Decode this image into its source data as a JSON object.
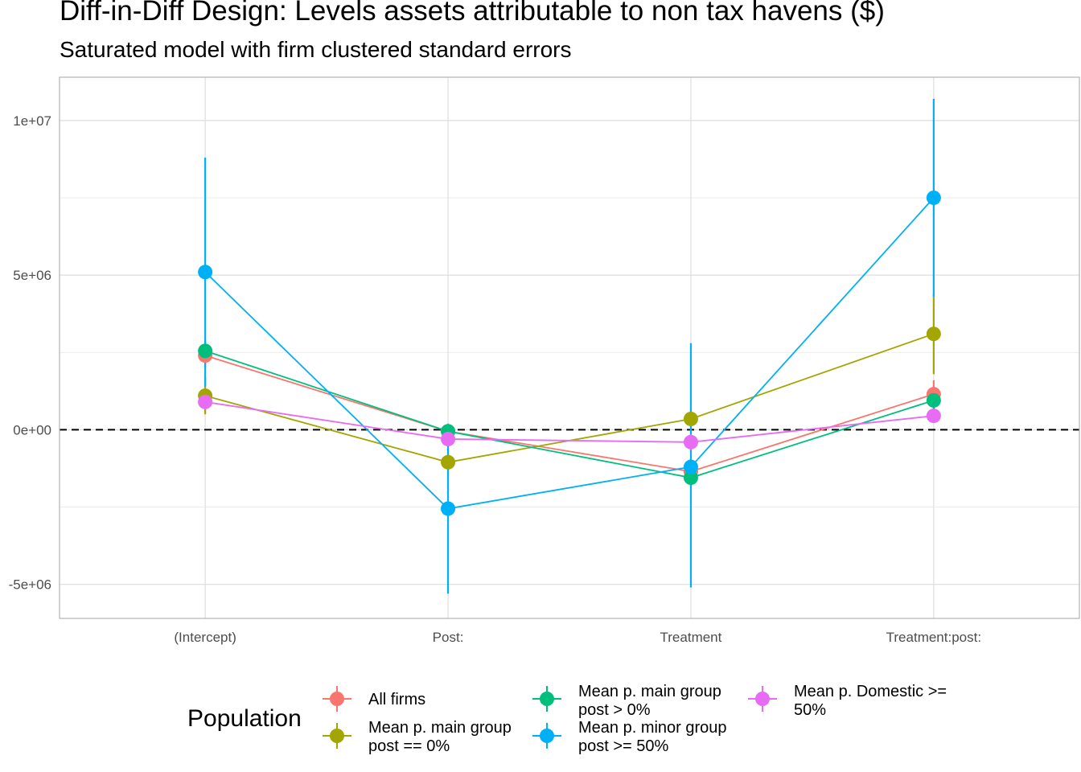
{
  "chart_data": {
    "type": "line",
    "title": "Diff-in-Diff Design: Levels assets attributable to non tax havens  ($)",
    "subtitle": "Saturated model with firm clustered standard errors",
    "xlabel": "",
    "ylabel": "",
    "categories": [
      "(Intercept)",
      "Post:",
      "Treatment",
      "Treatment:post:"
    ],
    "ylim": [
      -6100000,
      11400000
    ],
    "yticks": [
      -5000000,
      0,
      5000000,
      10000000
    ],
    "ytick_labels": [
      "-5e+06",
      "0e+00",
      "5e+06",
      "1e+07"
    ],
    "reference_line": {
      "y": 0,
      "style": "dashed"
    },
    "grid": true,
    "legend": {
      "title": "Population",
      "position": "bottom"
    },
    "series": [
      {
        "name": "All firms",
        "color": "#F8766D",
        "values": [
          2400000,
          -50000,
          -1350000,
          1150000
        ],
        "lower": [
          2000000,
          -250000,
          -1700000,
          700000
        ],
        "upper": [
          2800000,
          150000,
          -1000000,
          1600000
        ]
      },
      {
        "name": "Mean p. main group post == 0%",
        "legend_lines": [
          "Mean p. main group",
          "post == 0%"
        ],
        "color": "#A3A500",
        "values": [
          1100000,
          -1050000,
          350000,
          3100000
        ],
        "lower": [
          500000,
          -1500000,
          0,
          1800000
        ],
        "upper": [
          1700000,
          -600000,
          700000,
          4400000
        ]
      },
      {
        "name": "Mean p. main group post > 0%",
        "legend_lines": [
          "Mean p. main group",
          "post > 0%"
        ],
        "color": "#00BF7D",
        "values": [
          2550000,
          -50000,
          -1550000,
          950000
        ],
        "lower": [
          2200000,
          -250000,
          -1850000,
          600000
        ],
        "upper": [
          2900000,
          150000,
          -1250000,
          1300000
        ]
      },
      {
        "name": "Mean p. minor group post >= 50%",
        "legend_lines": [
          "Mean p. minor group",
          "post >= 50%"
        ],
        "color": "#00B0F6",
        "values": [
          5100000,
          -2550000,
          -1200000,
          7500000
        ],
        "lower": [
          1400000,
          -5300000,
          -5100000,
          4300000
        ],
        "upper": [
          8800000,
          200000,
          2800000,
          10700000
        ]
      },
      {
        "name": "Mean p. Domestic >= 50%",
        "legend_lines": [
          "Mean p. Domestic >=",
          "50%"
        ],
        "color": "#E76BF3",
        "values": [
          900000,
          -300000,
          -400000,
          450000
        ],
        "lower": [
          650000,
          -500000,
          -650000,
          250000
        ],
        "upper": [
          1150000,
          -100000,
          -150000,
          650000
        ]
      }
    ]
  }
}
